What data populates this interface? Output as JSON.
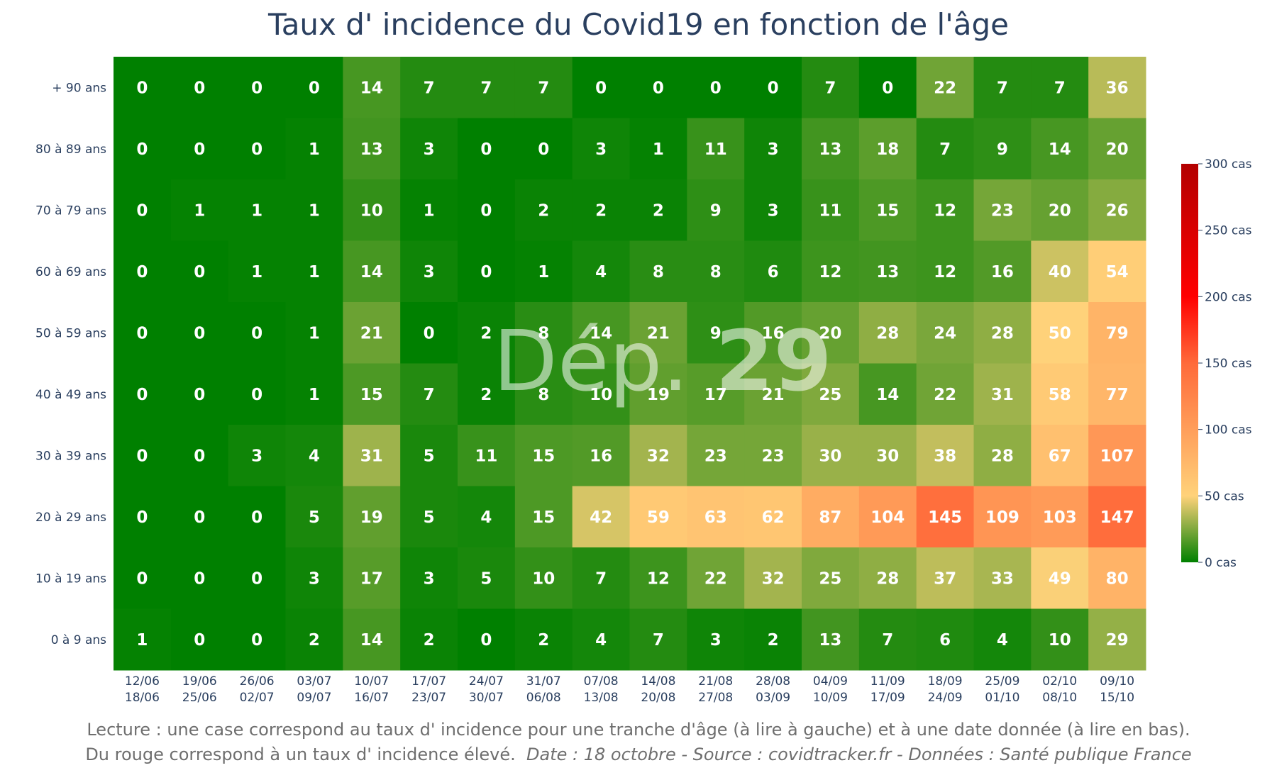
{
  "chart_data": {
    "type": "heatmap",
    "title": "Taux d' incidence du Covid19 en fonction de l'âge",
    "y_categories": [
      "+ 90 ans",
      "80 à 89 ans",
      "70 à 79 ans",
      "60 à 69 ans",
      "50 à 59 ans",
      "40 à 49 ans",
      "30 à 39 ans",
      "20 à 29 ans",
      "10 à 19 ans",
      "0 à 9 ans"
    ],
    "x_categories": [
      {
        "start": "12/06",
        "end": "18/06"
      },
      {
        "start": "19/06",
        "end": "25/06"
      },
      {
        "start": "26/06",
        "end": "02/07"
      },
      {
        "start": "03/07",
        "end": "09/07"
      },
      {
        "start": "10/07",
        "end": "16/07"
      },
      {
        "start": "17/07",
        "end": "23/07"
      },
      {
        "start": "24/07",
        "end": "30/07"
      },
      {
        "start": "31/07",
        "end": "06/08"
      },
      {
        "start": "07/08",
        "end": "13/08"
      },
      {
        "start": "14/08",
        "end": "20/08"
      },
      {
        "start": "21/08",
        "end": "27/08"
      },
      {
        "start": "28/08",
        "end": "03/09"
      },
      {
        "start": "04/09",
        "end": "10/09"
      },
      {
        "start": "11/09",
        "end": "17/09"
      },
      {
        "start": "18/09",
        "end": "24/09"
      },
      {
        "start": "25/09",
        "end": "01/10"
      },
      {
        "start": "02/10",
        "end": "08/10"
      },
      {
        "start": "09/10",
        "end": "15/10"
      }
    ],
    "values": [
      [
        0,
        0,
        0,
        0,
        14,
        7,
        7,
        7,
        0,
        0,
        0,
        0,
        7,
        0,
        22,
        7,
        7,
        36
      ],
      [
        0,
        0,
        0,
        1,
        13,
        3,
        0,
        0,
        3,
        1,
        11,
        3,
        13,
        18,
        7,
        9,
        14,
        20
      ],
      [
        0,
        1,
        1,
        1,
        10,
        1,
        0,
        2,
        2,
        2,
        9,
        3,
        11,
        15,
        12,
        23,
        20,
        26
      ],
      [
        0,
        0,
        1,
        1,
        14,
        3,
        0,
        1,
        4,
        8,
        8,
        6,
        12,
        13,
        12,
        16,
        40,
        54
      ],
      [
        0,
        0,
        0,
        1,
        21,
        0,
        2,
        8,
        14,
        21,
        9,
        16,
        20,
        28,
        24,
        28,
        50,
        79
      ],
      [
        0,
        0,
        0,
        1,
        15,
        7,
        2,
        8,
        10,
        19,
        17,
        21,
        25,
        14,
        22,
        31,
        58,
        77
      ],
      [
        0,
        0,
        3,
        4,
        31,
        5,
        11,
        15,
        16,
        32,
        23,
        23,
        30,
        30,
        38,
        28,
        67,
        107
      ],
      [
        0,
        0,
        0,
        5,
        19,
        5,
        4,
        15,
        42,
        59,
        63,
        62,
        87,
        104,
        145,
        109,
        103,
        147
      ],
      [
        0,
        0,
        0,
        3,
        17,
        3,
        5,
        10,
        7,
        12,
        22,
        32,
        25,
        28,
        37,
        33,
        49,
        80
      ],
      [
        1,
        0,
        0,
        2,
        14,
        2,
        0,
        2,
        4,
        7,
        3,
        2,
        13,
        7,
        6,
        4,
        10,
        29
      ]
    ],
    "colorscale": {
      "min": 0,
      "max": 300,
      "ticks": [
        {
          "value": 300,
          "label": "300 cas"
        },
        {
          "value": 250,
          "label": "250 cas"
        },
        {
          "value": 200,
          "label": "200 cas"
        },
        {
          "value": 150,
          "label": "150 cas"
        },
        {
          "value": 100,
          "label": "100 cas"
        },
        {
          "value": 50,
          "label": "50 cas"
        },
        {
          "value": 0,
          "label": "0 cas"
        }
      ],
      "stops": [
        {
          "value": 0,
          "color": "#008000"
        },
        {
          "value": 50,
          "color": "#ffd27a"
        },
        {
          "value": 150,
          "color": "#ff6a3a"
        },
        {
          "value": 200,
          "color": "#ff0000"
        },
        {
          "value": 300,
          "color": "#b30000"
        }
      ]
    },
    "watermark": {
      "prefix": "Dép. ",
      "number": "29"
    }
  },
  "footer": {
    "line1": "Lecture : une case correspond au taux d' incidence pour une tranche d'âge (à lire à gauche) et à une date donnée (à lire en bas).",
    "line2_plain": "Du rouge correspond à un taux d' incidence élevé.",
    "line2_italic": "Date : 18 octobre - Source : covidtracker.fr - Données : Santé publique France"
  }
}
